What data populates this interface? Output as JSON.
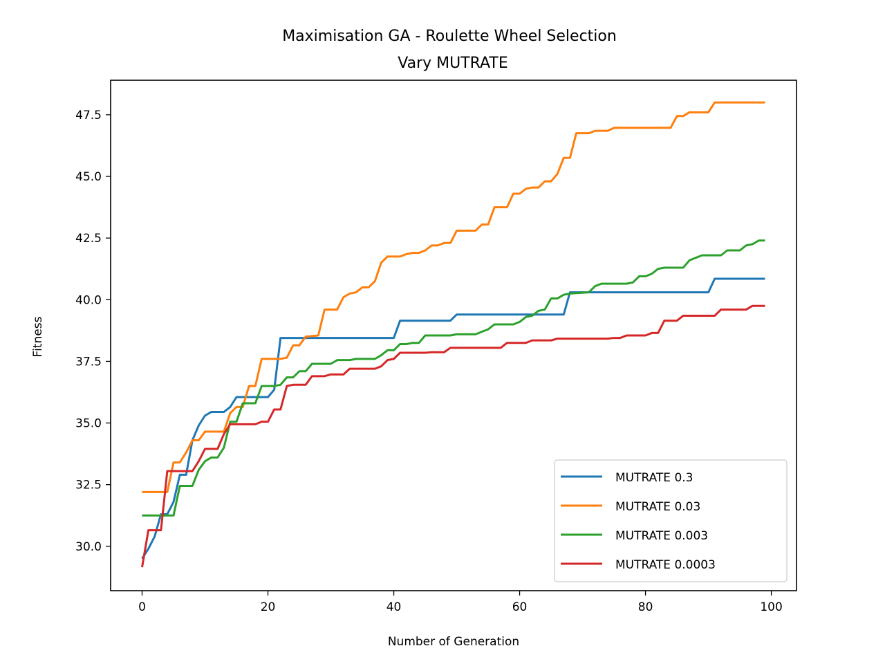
{
  "chart_data": {
    "type": "line",
    "title": "Maximisation GA - Roulette Wheel Selection",
    "subtitle": "Vary MUTRATE",
    "xlabel": "Number of Generation",
    "ylabel": "Fitness",
    "xlim": [
      -5,
      104
    ],
    "ylim": [
      28.2,
      48.9
    ],
    "xticks": [
      0,
      20,
      40,
      60,
      80,
      100
    ],
    "yticks": [
      30.0,
      32.5,
      35.0,
      37.5,
      40.0,
      42.5,
      45.0,
      47.5
    ],
    "xtick_labels": [
      "0",
      "20",
      "40",
      "60",
      "80",
      "100"
    ],
    "ytick_labels": [
      "30.0",
      "32.5",
      "35.0",
      "37.5",
      "40.0",
      "42.5",
      "45.0",
      "47.5"
    ],
    "grid": false,
    "legend_position": "lower-right",
    "series": [
      {
        "name": "MUTRATE 0.3",
        "color": "#1f77b4",
        "points": [
          [
            0,
            29.5
          ],
          [
            1,
            29.9
          ],
          [
            2,
            30.4
          ],
          [
            3,
            31.3
          ],
          [
            4,
            31.3
          ],
          [
            5,
            31.8
          ],
          [
            6,
            32.9
          ],
          [
            7,
            32.9
          ],
          [
            8,
            34.3
          ],
          [
            9,
            34.9
          ],
          [
            10,
            35.3
          ],
          [
            11,
            35.45
          ],
          [
            12,
            35.45
          ],
          [
            13,
            35.45
          ],
          [
            14,
            35.65
          ],
          [
            15,
            36.05
          ],
          [
            16,
            36.05
          ],
          [
            17,
            36.05
          ],
          [
            18,
            36.05
          ],
          [
            19,
            36.05
          ],
          [
            20,
            36.05
          ],
          [
            21,
            36.35
          ],
          [
            22,
            38.45
          ],
          [
            40,
            38.45
          ],
          [
            41,
            39.15
          ],
          [
            49,
            39.15
          ],
          [
            50,
            39.4
          ],
          [
            67,
            39.4
          ],
          [
            68,
            40.3
          ],
          [
            90,
            40.3
          ],
          [
            91,
            40.85
          ],
          [
            99,
            40.85
          ]
        ]
      },
      {
        "name": "MUTRATE 0.03",
        "color": "#ff7f0e",
        "points": [
          [
            0,
            32.2
          ],
          [
            4,
            32.2
          ],
          [
            5,
            33.4
          ],
          [
            6,
            33.4
          ],
          [
            7,
            33.8
          ],
          [
            8,
            34.3
          ],
          [
            9,
            34.3
          ],
          [
            10,
            34.65
          ],
          [
            13,
            34.65
          ],
          [
            14,
            35.4
          ],
          [
            15,
            35.65
          ],
          [
            16,
            35.65
          ],
          [
            17,
            36.5
          ],
          [
            18,
            36.5
          ],
          [
            19,
            37.6
          ],
          [
            22,
            37.6
          ],
          [
            23,
            37.65
          ],
          [
            24,
            38.15
          ],
          [
            25,
            38.15
          ],
          [
            26,
            38.5
          ],
          [
            28,
            38.55
          ],
          [
            29,
            39.6
          ],
          [
            31,
            39.6
          ],
          [
            32,
            40.1
          ],
          [
            33,
            40.25
          ],
          [
            34,
            40.3
          ],
          [
            35,
            40.5
          ],
          [
            36,
            40.5
          ],
          [
            37,
            40.75
          ],
          [
            38,
            41.5
          ],
          [
            39,
            41.75
          ],
          [
            41,
            41.75
          ],
          [
            42,
            41.85
          ],
          [
            43,
            41.9
          ],
          [
            44,
            41.9
          ],
          [
            45,
            42.0
          ],
          [
            46,
            42.2
          ],
          [
            47,
            42.2
          ],
          [
            48,
            42.3
          ],
          [
            49,
            42.3
          ],
          [
            50,
            42.8
          ],
          [
            53,
            42.8
          ],
          [
            54,
            43.05
          ],
          [
            55,
            43.05
          ],
          [
            56,
            43.75
          ],
          [
            58,
            43.75
          ],
          [
            59,
            44.3
          ],
          [
            60,
            44.3
          ],
          [
            61,
            44.5
          ],
          [
            62,
            44.55
          ],
          [
            63,
            44.55
          ],
          [
            64,
            44.8
          ],
          [
            65,
            44.8
          ],
          [
            66,
            45.1
          ],
          [
            67,
            45.75
          ],
          [
            68,
            45.75
          ],
          [
            69,
            46.75
          ],
          [
            71,
            46.75
          ],
          [
            72,
            46.85
          ],
          [
            74,
            46.85
          ],
          [
            75,
            46.97
          ],
          [
            84,
            46.97
          ],
          [
            85,
            47.45
          ],
          [
            86,
            47.45
          ],
          [
            87,
            47.6
          ],
          [
            90,
            47.6
          ],
          [
            91,
            48.0
          ],
          [
            99,
            48.0
          ]
        ]
      },
      {
        "name": "MUTRATE 0.003",
        "color": "#2ca02c",
        "points": [
          [
            0,
            31.25
          ],
          [
            5,
            31.25
          ],
          [
            6,
            32.45
          ],
          [
            8,
            32.45
          ],
          [
            9,
            33.1
          ],
          [
            10,
            33.45
          ],
          [
            11,
            33.6
          ],
          [
            12,
            33.6
          ],
          [
            13,
            34.0
          ],
          [
            14,
            35.05
          ],
          [
            15,
            35.05
          ],
          [
            16,
            35.8
          ],
          [
            18,
            35.8
          ],
          [
            19,
            36.5
          ],
          [
            21,
            36.5
          ],
          [
            22,
            36.55
          ],
          [
            23,
            36.85
          ],
          [
            24,
            36.85
          ],
          [
            25,
            37.1
          ],
          [
            26,
            37.1
          ],
          [
            27,
            37.4
          ],
          [
            30,
            37.4
          ],
          [
            31,
            37.55
          ],
          [
            33,
            37.55
          ],
          [
            34,
            37.6
          ],
          [
            37,
            37.6
          ],
          [
            38,
            37.75
          ],
          [
            39,
            37.95
          ],
          [
            40,
            37.95
          ],
          [
            41,
            38.2
          ],
          [
            42,
            38.2
          ],
          [
            43,
            38.25
          ],
          [
            44,
            38.25
          ],
          [
            45,
            38.55
          ],
          [
            49,
            38.55
          ],
          [
            50,
            38.6
          ],
          [
            53,
            38.6
          ],
          [
            54,
            38.7
          ],
          [
            55,
            38.8
          ],
          [
            56,
            39.0
          ],
          [
            59,
            39.0
          ],
          [
            60,
            39.1
          ],
          [
            61,
            39.3
          ],
          [
            62,
            39.35
          ],
          [
            63,
            39.55
          ],
          [
            64,
            39.6
          ],
          [
            65,
            40.05
          ],
          [
            66,
            40.05
          ],
          [
            67,
            40.2
          ],
          [
            68,
            40.25
          ],
          [
            71,
            40.3
          ],
          [
            72,
            40.55
          ],
          [
            73,
            40.65
          ],
          [
            77,
            40.65
          ],
          [
            78,
            40.7
          ],
          [
            79,
            40.95
          ],
          [
            80,
            40.95
          ],
          [
            81,
            41.05
          ],
          [
            82,
            41.25
          ],
          [
            83,
            41.3
          ],
          [
            86,
            41.3
          ],
          [
            87,
            41.6
          ],
          [
            88,
            41.7
          ],
          [
            89,
            41.8
          ],
          [
            92,
            41.8
          ],
          [
            93,
            42.0
          ],
          [
            95,
            42.0
          ],
          [
            96,
            42.2
          ],
          [
            97,
            42.25
          ],
          [
            98,
            42.4
          ],
          [
            99,
            42.4
          ]
        ]
      },
      {
        "name": "MUTRATE 0.0003",
        "color": "#d62728",
        "points": [
          [
            0,
            29.15
          ],
          [
            1,
            30.65
          ],
          [
            3,
            30.65
          ],
          [
            4,
            33.05
          ],
          [
            8,
            33.05
          ],
          [
            9,
            33.45
          ],
          [
            10,
            33.95
          ],
          [
            12,
            33.95
          ],
          [
            13,
            34.55
          ],
          [
            14,
            34.95
          ],
          [
            18,
            34.95
          ],
          [
            19,
            35.05
          ],
          [
            20,
            35.05
          ],
          [
            21,
            35.55
          ],
          [
            22,
            35.55
          ],
          [
            23,
            36.5
          ],
          [
            24,
            36.55
          ],
          [
            26,
            36.55
          ],
          [
            27,
            36.9
          ],
          [
            29,
            36.9
          ],
          [
            30,
            36.97
          ],
          [
            32,
            36.97
          ],
          [
            33,
            37.2
          ],
          [
            37,
            37.2
          ],
          [
            38,
            37.3
          ],
          [
            39,
            37.55
          ],
          [
            40,
            37.6
          ],
          [
            41,
            37.85
          ],
          [
            45,
            37.85
          ],
          [
            46,
            37.87
          ],
          [
            48,
            37.87
          ],
          [
            49,
            38.05
          ],
          [
            57,
            38.05
          ],
          [
            58,
            38.25
          ],
          [
            61,
            38.25
          ],
          [
            62,
            38.35
          ],
          [
            65,
            38.35
          ],
          [
            66,
            38.42
          ],
          [
            74,
            38.42
          ],
          [
            75,
            38.45
          ],
          [
            76,
            38.45
          ],
          [
            77,
            38.55
          ],
          [
            80,
            38.55
          ],
          [
            81,
            38.65
          ],
          [
            82,
            38.65
          ],
          [
            83,
            39.15
          ],
          [
            85,
            39.15
          ],
          [
            86,
            39.35
          ],
          [
            91,
            39.35
          ],
          [
            92,
            39.6
          ],
          [
            96,
            39.6
          ],
          [
            97,
            39.75
          ],
          [
            99,
            39.75
          ]
        ]
      }
    ]
  }
}
